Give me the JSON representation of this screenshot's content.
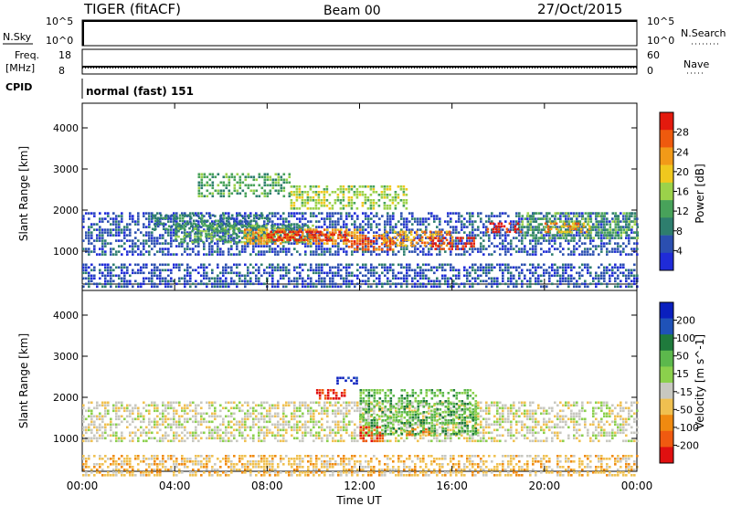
{
  "header": {
    "title": "TIGER (fitACF)",
    "beam": "Beam 00",
    "date": "27/Oct/2015"
  },
  "nsky_panel": {
    "left_label": "N.Sky",
    "right_label": "N.Search",
    "ticks": [
      "10^5",
      "10^0"
    ]
  },
  "freq_panel": {
    "left_label_1": "Freq.",
    "left_label_2": "[MHz]",
    "left_ticks": [
      "18",
      "8"
    ],
    "right_label": "Nave",
    "right_ticks": [
      "60",
      "0"
    ]
  },
  "cpid": {
    "label": "CPID",
    "value": "normal (fast) 151"
  },
  "colors": {
    "power": [
      "#1f2bd8",
      "#2b4fb0",
      "#2e7e6e",
      "#48a25a",
      "#9bd24a",
      "#f0c81e",
      "#f29a18",
      "#ee5a0e",
      "#e31a0e"
    ],
    "velocity": [
      "#0a1fbe",
      "#1f52b8",
      "#1f7a3c",
      "#5cb84c",
      "#8bd04c",
      "#c8c8c0",
      "#f0c050",
      "#f08a10",
      "#f05a10",
      "#e01010"
    ]
  },
  "chart_data": [
    {
      "type": "heatmap",
      "name": "power",
      "ylabel": "Slant Range [km]",
      "yticks": [
        1000,
        2000,
        3000,
        4000
      ],
      "ylim": [
        200,
        4600
      ],
      "xlim": [
        0,
        24
      ],
      "colorbar_label": "Power [dB]",
      "colorbar_ticks": [
        "28",
        "24",
        "20",
        "16",
        "12",
        "8",
        "4"
      ],
      "regions": [
        {
          "x": [
            0,
            24
          ],
          "y": [
            100,
            700
          ],
          "level": 1
        },
        {
          "x": [
            0,
            24
          ],
          "y": [
            900,
            1950
          ],
          "level": 1
        },
        {
          "x": [
            3,
            8
          ],
          "y": [
            1550,
            1900
          ],
          "level": 2
        },
        {
          "x": [
            4,
            10
          ],
          "y": [
            1200,
            1650
          ],
          "level": 3
        },
        {
          "x": [
            7,
            12
          ],
          "y": [
            1150,
            1550
          ],
          "level": 6
        },
        {
          "x": [
            8,
            11.5
          ],
          "y": [
            1250,
            1500
          ],
          "level": 8
        },
        {
          "x": [
            11.5,
            13.5
          ],
          "y": [
            1050,
            1400
          ],
          "level": 7
        },
        {
          "x": [
            13,
            16
          ],
          "y": [
            1150,
            1500
          ],
          "level": 6
        },
        {
          "x": [
            15,
            17
          ],
          "y": [
            1050,
            1350
          ],
          "level": 8
        },
        {
          "x": [
            17.5,
            19
          ],
          "y": [
            1450,
            1700
          ],
          "level": 8
        },
        {
          "x": [
            19,
            24
          ],
          "y": [
            1300,
            1950
          ],
          "level": 3
        },
        {
          "x": [
            20,
            22
          ],
          "y": [
            1450,
            1700
          ],
          "level": 6
        },
        {
          "x": [
            9,
            14
          ],
          "y": [
            2000,
            2600
          ],
          "level": 4
        },
        {
          "x": [
            5,
            9
          ],
          "y": [
            2350,
            2900
          ],
          "level": 3
        }
      ]
    },
    {
      "type": "heatmap",
      "name": "velocity",
      "ylabel": "Slant Range [km]",
      "xlabel": "Time UT",
      "yticks": [
        1000,
        2000,
        3000,
        4000
      ],
      "ylim": [
        200,
        4600
      ],
      "xlim": [
        0,
        24
      ],
      "xticks": [
        "00:00",
        "04:00",
        "08:00",
        "12:00",
        "16:00",
        "20:00",
        "00:00"
      ],
      "colorbar_label": "Velocity [m s^-1]",
      "colorbar_ticks": [
        "200",
        "100",
        "50",
        "15",
        "-15",
        "-50",
        "-100",
        "-200"
      ],
      "regions": [
        {
          "x": [
            0,
            24
          ],
          "y": [
            100,
            600
          ],
          "level": 6
        },
        {
          "x": [
            0,
            24
          ],
          "y": [
            900,
            1900
          ],
          "level": 5
        },
        {
          "x": [
            12,
            17
          ],
          "y": [
            1100,
            2200
          ],
          "level": 3
        },
        {
          "x": [
            11,
            12
          ],
          "y": [
            2300,
            2500
          ],
          "level": 0
        },
        {
          "x": [
            10,
            11.5
          ],
          "y": [
            1950,
            2200
          ],
          "level": 9
        },
        {
          "x": [
            12,
            13
          ],
          "y": [
            950,
            1300
          ],
          "level": 8
        },
        {
          "x": [
            14,
            15
          ],
          "y": [
            1050,
            1250
          ],
          "level": 7
        }
      ]
    }
  ]
}
